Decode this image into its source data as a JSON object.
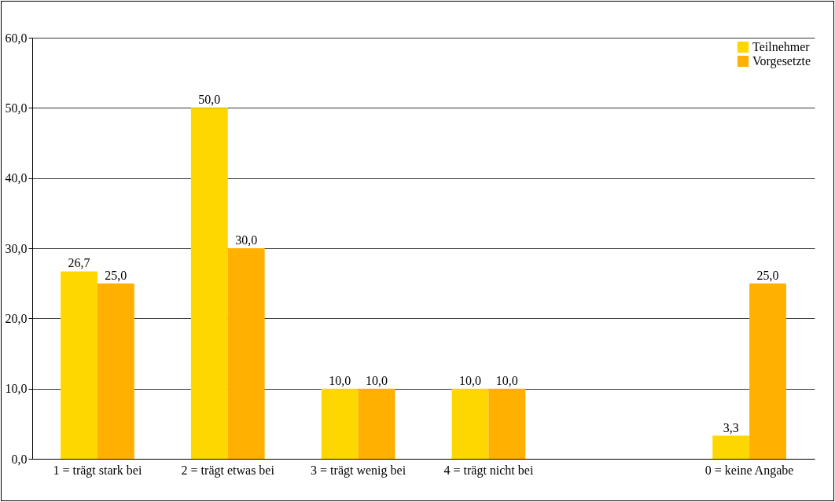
{
  "chart_data": {
    "type": "bar",
    "categories": [
      "1 = trägt stark bei",
      "2 = trägt etwas bei",
      "3 = trägt wenig bei",
      "4 = trägt nicht bei",
      null,
      "0 = keine Angabe"
    ],
    "series": [
      {
        "name": "Teilnehmer",
        "color": "#ffd700",
        "values": [
          26.7,
          50.0,
          10.0,
          10.0,
          null,
          3.3
        ],
        "value_labels": [
          "26,7",
          "50,0",
          "10,0",
          "10,0",
          null,
          "3,3"
        ]
      },
      {
        "name": "Vorgesetzte",
        "color": "#ffb000",
        "values": [
          25.0,
          30.0,
          10.0,
          10.0,
          null,
          25.0
        ],
        "value_labels": [
          "25,0",
          "30,0",
          "10,0",
          "10,0",
          null,
          "25,0"
        ]
      }
    ],
    "ylim": [
      0,
      60
    ],
    "yticks": [
      {
        "value": 0,
        "label": "0,0"
      },
      {
        "value": 10,
        "label": "10,0"
      },
      {
        "value": 20,
        "label": "20,0"
      },
      {
        "value": 30,
        "label": "30,0"
      },
      {
        "value": 40,
        "label": "40,0"
      },
      {
        "value": 50,
        "label": "50,0"
      },
      {
        "value": 60,
        "label": "60,0"
      }
    ],
    "grid": "y",
    "legend": "top right"
  }
}
